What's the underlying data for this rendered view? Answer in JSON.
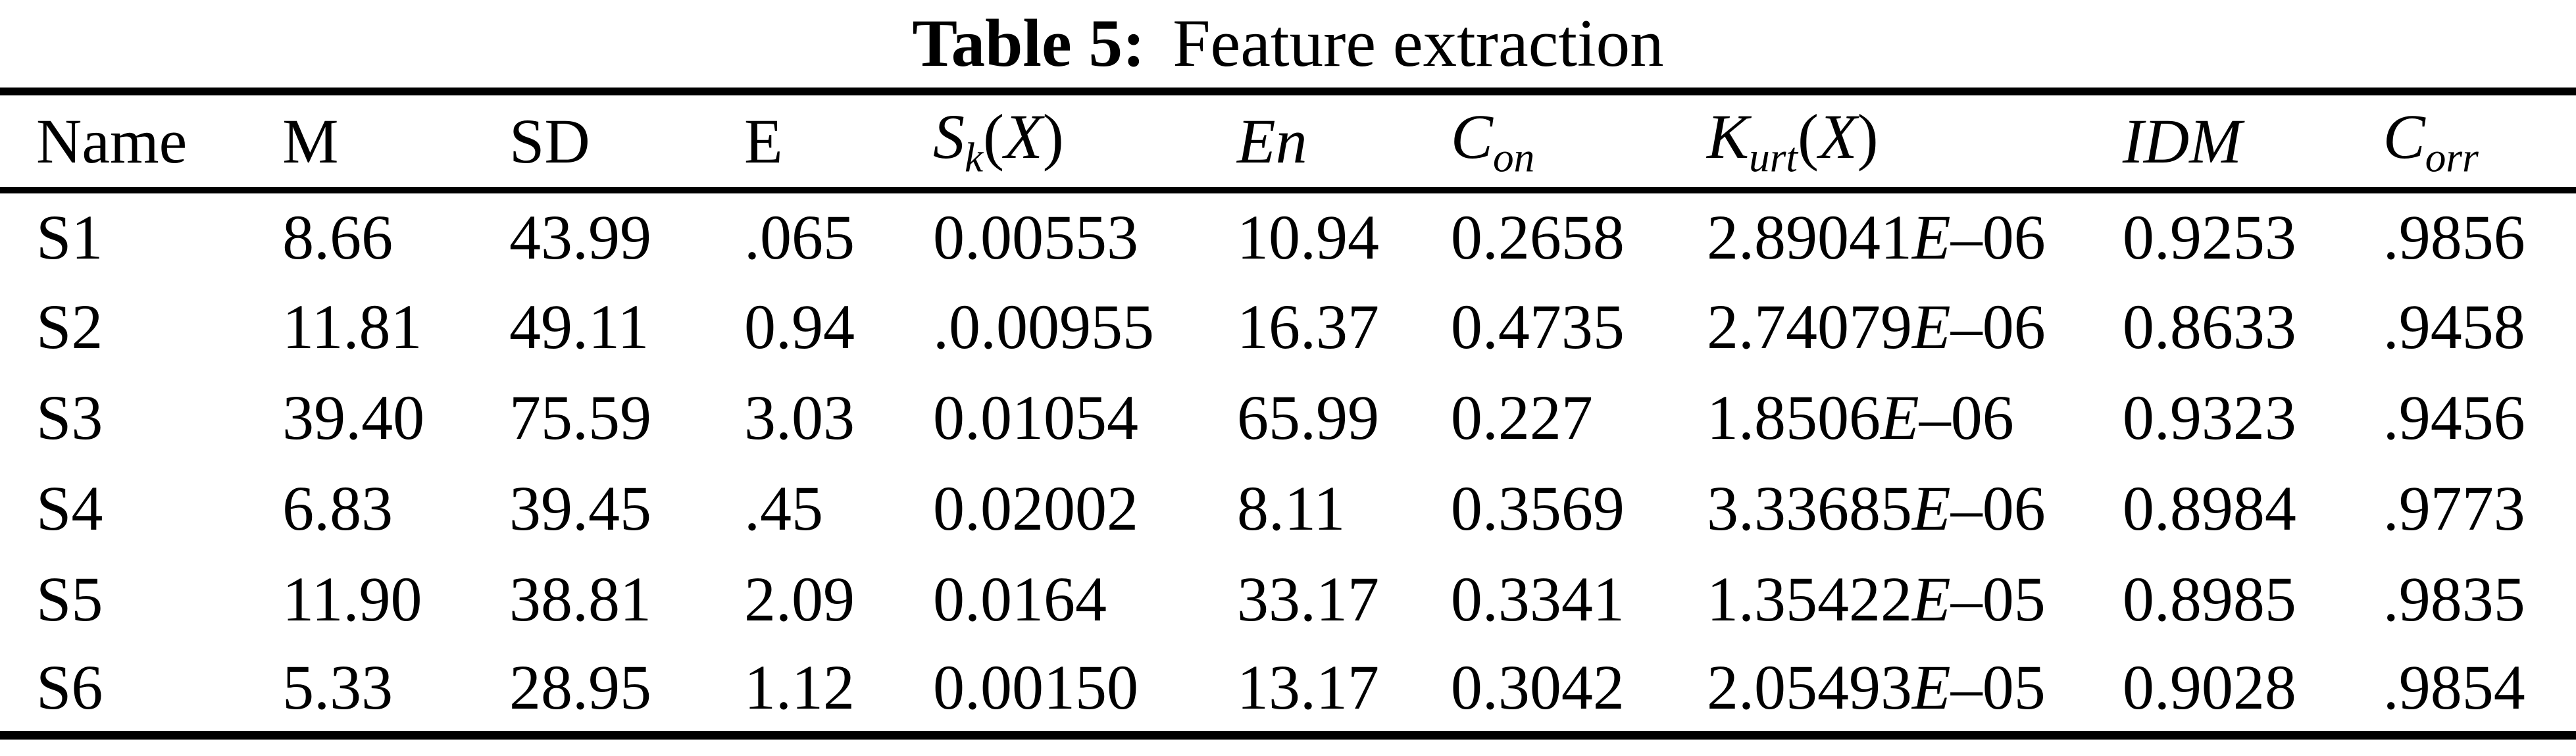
{
  "title": {
    "label": "Table 5:",
    "text": "Feature extraction"
  },
  "table": {
    "columns": [
      {
        "key": "name",
        "width_pct": 10.96,
        "label": [
          {
            "t": "Name"
          }
        ]
      },
      {
        "key": "m",
        "width_pct": 8.81,
        "label": [
          {
            "t": "M"
          }
        ]
      },
      {
        "key": "sd",
        "width_pct": 9.12,
        "label": [
          {
            "t": "SD"
          }
        ]
      },
      {
        "key": "e",
        "width_pct": 7.33,
        "label": [
          {
            "t": "E"
          }
        ]
      },
      {
        "key": "sk",
        "width_pct": 11.8,
        "label": [
          {
            "t": "S",
            "i": true
          },
          {
            "t": "k",
            "i": true,
            "sub": true
          },
          {
            "t": "("
          },
          {
            "t": "X",
            "i": true
          },
          {
            "t": ")"
          }
        ]
      },
      {
        "key": "en",
        "width_pct": 8.3,
        "label": [
          {
            "t": "En",
            "i": true
          }
        ]
      },
      {
        "key": "con",
        "width_pct": 9.94,
        "label": [
          {
            "t": "C",
            "i": true
          },
          {
            "t": "on",
            "i": true,
            "sub": true
          }
        ]
      },
      {
        "key": "kurt",
        "width_pct": 16.14,
        "label": [
          {
            "t": "K",
            "i": true
          },
          {
            "t": "urt",
            "i": true,
            "sub": true
          },
          {
            "t": "("
          },
          {
            "t": "X",
            "i": true
          },
          {
            "t": ")"
          }
        ]
      },
      {
        "key": "idm",
        "width_pct": 10.11,
        "label": [
          {
            "t": "IDM",
            "i": true
          }
        ]
      },
      {
        "key": "corr",
        "width_pct": 7.49,
        "label": [
          {
            "t": "C",
            "i": true
          },
          {
            "t": "orr",
            "i": true,
            "sub": true
          }
        ]
      }
    ],
    "rows": [
      {
        "name": "S1",
        "m": "8.66",
        "sd": "43.99",
        "e": ".065",
        "sk": "0.00553",
        "en": "10.94",
        "con": "0.2658",
        "kurt": "2.89041E–06",
        "idm": "0.9253",
        "corr": ".9856"
      },
      {
        "name": "S2",
        "m": "11.81",
        "sd": "49.11",
        "e": "0.94",
        "sk": ".0.00955",
        "en": "16.37",
        "con": "0.4735",
        "kurt": "2.74079E–06",
        "idm": "0.8633",
        "corr": ".9458"
      },
      {
        "name": "S3",
        "m": "39.40",
        "sd": "75.59",
        "e": "3.03",
        "sk": "0.01054",
        "en": "65.99",
        "con": "0.227",
        "kurt": "1.8506E–06",
        "idm": "0.9323",
        "corr": ".9456"
      },
      {
        "name": "S4",
        "m": "6.83",
        "sd": "39.45",
        "e": ".45",
        "sk": "0.02002",
        "en": "8.11",
        "con": "0.3569",
        "kurt": "3.33685E–06",
        "idm": "0.8984",
        "corr": ".9773"
      },
      {
        "name": "S5",
        "m": "11.90",
        "sd": "38.81",
        "e": "2.09",
        "sk": "0.0164",
        "en": "33.17",
        "con": "0.3341",
        "kurt": "1.35422E–05",
        "idm": "0.8985",
        "corr": ".9835"
      },
      {
        "name": "S6",
        "m": "5.33",
        "sd": "28.95",
        "e": "1.12",
        "sk": "0.00150",
        "en": "13.17",
        "con": "0.3042",
        "kurt": "2.05493E–05",
        "idm": "0.9028",
        "corr": ".9854"
      }
    ]
  }
}
